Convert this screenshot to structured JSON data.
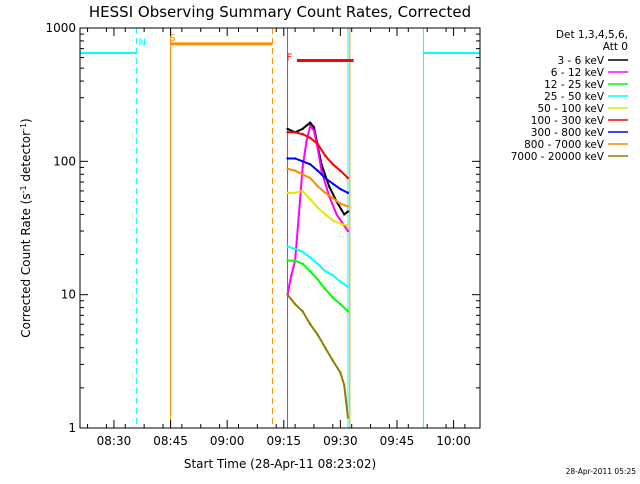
{
  "chart_data": {
    "type": "line",
    "title": "HESSI Observing Summary Count Rates, Corrected",
    "xlabel": "Start Time (28-Apr-11 08:23:02)",
    "ylabel_parts": [
      "Corrected Count Rate (s",
      "-1",
      " detector",
      "-1",
      ")"
    ],
    "y_scale": "log",
    "ylim": [
      1,
      1000
    ],
    "y_ticks": [
      {
        "value": 1,
        "label": "1"
      },
      {
        "value": 10,
        "label": "10"
      },
      {
        "value": 100,
        "label": "100"
      },
      {
        "value": 1000,
        "label": "1000"
      }
    ],
    "xlim_min": [
      -2,
      104
    ],
    "x_ticks": [
      {
        "t": 7,
        "label": "08:30"
      },
      {
        "t": 22,
        "label": "08:45"
      },
      {
        "t": 37,
        "label": "09:00"
      },
      {
        "t": 52,
        "label": "09:15"
      },
      {
        "t": 67,
        "label": "09:30"
      },
      {
        "t": 82,
        "label": "09:45"
      },
      {
        "t": 97,
        "label": "10:00"
      }
    ],
    "x_minor_step": 5,
    "legend": {
      "header": [
        "Det 1,3,4,5,6,",
        "Att 0"
      ],
      "entries": [
        {
          "label": "3 - 6 keV",
          "color": "#000000"
        },
        {
          "label": "6 - 12 keV",
          "color": "#ff00ff"
        },
        {
          "label": "12 - 25 keV",
          "color": "#00ff00"
        },
        {
          "label": "25 - 50 keV",
          "color": "#00ffff"
        },
        {
          "label": "50 - 100 keV",
          "color": "#e6e600"
        },
        {
          "label": "100 - 300 keV",
          "color": "#ff0000"
        },
        {
          "label": "300 - 800 keV",
          "color": "#0000ff"
        },
        {
          "label": "800 - 7000 keV",
          "color": "#ff8c00"
        },
        {
          "label": "7000 - 20000 keV",
          "color": "#8b8000"
        }
      ]
    },
    "series": [
      {
        "color": "#000000",
        "points": [
          [
            53,
            175
          ],
          [
            55,
            165
          ],
          [
            57,
            175
          ],
          [
            58,
            185
          ],
          [
            59,
            195
          ],
          [
            60,
            180
          ],
          [
            61,
            130
          ],
          [
            62,
            95
          ],
          [
            64,
            65
          ],
          [
            66,
            50
          ],
          [
            68,
            40
          ],
          [
            69,
            42
          ]
        ]
      },
      {
        "color": "#ff00ff",
        "points": [
          [
            53,
            10
          ],
          [
            54,
            14
          ],
          [
            55,
            18
          ],
          [
            56,
            40
          ],
          [
            57,
            90
          ],
          [
            58,
            140
          ],
          [
            59,
            185
          ],
          [
            60,
            170
          ],
          [
            61,
            125
          ],
          [
            62,
            85
          ],
          [
            64,
            55
          ],
          [
            66,
            40
          ],
          [
            68,
            33
          ],
          [
            69,
            30
          ]
        ]
      },
      {
        "color": "#00ff00",
        "points": [
          [
            53,
            18
          ],
          [
            55,
            18
          ],
          [
            57,
            17
          ],
          [
            59,
            15
          ],
          [
            61,
            13
          ],
          [
            63,
            11
          ],
          [
            65,
            9.5
          ],
          [
            67,
            8.5
          ],
          [
            69,
            7.5
          ]
        ]
      },
      {
        "color": "#00ffff",
        "points": [
          [
            53,
            23
          ],
          [
            55,
            22
          ],
          [
            57,
            21
          ],
          [
            59,
            19
          ],
          [
            61,
            17
          ],
          [
            63,
            15
          ],
          [
            65,
            14
          ],
          [
            67,
            12.5
          ],
          [
            69,
            11.5
          ]
        ]
      },
      {
        "color": "#e6e600",
        "points": [
          [
            53,
            58
          ],
          [
            55,
            58
          ],
          [
            57,
            60
          ],
          [
            59,
            52
          ],
          [
            61,
            45
          ],
          [
            63,
            40
          ],
          [
            65,
            36
          ],
          [
            67,
            34
          ],
          [
            69,
            33
          ]
        ]
      },
      {
        "color": "#ff0000",
        "points": [
          [
            53,
            165
          ],
          [
            55,
            165
          ],
          [
            57,
            160
          ],
          [
            59,
            150
          ],
          [
            61,
            135
          ],
          [
            63,
            110
          ],
          [
            65,
            95
          ],
          [
            67,
            85
          ],
          [
            69,
            75
          ]
        ]
      },
      {
        "color": "#0000ff",
        "points": [
          [
            53,
            105
          ],
          [
            55,
            105
          ],
          [
            57,
            100
          ],
          [
            59,
            95
          ],
          [
            61,
            85
          ],
          [
            63,
            75
          ],
          [
            65,
            68
          ],
          [
            67,
            62
          ],
          [
            69,
            58
          ]
        ]
      },
      {
        "color": "#ff8c00",
        "points": [
          [
            53,
            88
          ],
          [
            55,
            85
          ],
          [
            57,
            80
          ],
          [
            59,
            75
          ],
          [
            61,
            65
          ],
          [
            63,
            58
          ],
          [
            65,
            53
          ],
          [
            67,
            48
          ],
          [
            69,
            46
          ]
        ]
      },
      {
        "color": "#8b8000",
        "points": [
          [
            53,
            10
          ],
          [
            55,
            8.5
          ],
          [
            57,
            7.5
          ],
          [
            59,
            6
          ],
          [
            61,
            5
          ],
          [
            63,
            4
          ],
          [
            65,
            3.2
          ],
          [
            67,
            2.6
          ],
          [
            68,
            2.1
          ],
          [
            69,
            1.2
          ]
        ]
      }
    ],
    "pre_level": {
      "color": "#00ffff",
      "value": 650,
      "segments": [
        [
          -2,
          13
        ],
        [
          89,
          104
        ]
      ]
    },
    "flags": [
      {
        "label": "N",
        "color": "#00ffff",
        "t": 14.5,
        "y": 740
      },
      {
        "label": "S",
        "color": "#ff8c00",
        "t": 22.5,
        "y": 800
      },
      {
        "label": "F",
        "color": "#ff0000",
        "t": 53.5,
        "y": 570
      }
    ],
    "flag_bars": [
      {
        "color": "#ff8c00",
        "t_start": 22,
        "t_end": 49,
        "value": 760
      },
      {
        "color": "#ff0000",
        "t_start": 55.5,
        "t_end": 70.5,
        "value": 570
      }
    ],
    "vlines": [
      {
        "t": -2,
        "color": "#00ffff",
        "dashed": false
      },
      {
        "t": 13,
        "color": "#00ffff",
        "dashed": true
      },
      {
        "t": 22,
        "color": "#ff8c00",
        "dashed": false
      },
      {
        "t": 49,
        "color": "#ff8c00",
        "dashed": true
      },
      {
        "t": 53,
        "color": "#ff00ff",
        "dashed": false
      },
      {
        "t": 69,
        "color": "#00ffff",
        "dashed": false
      },
      {
        "t": 69.5,
        "color": "#ff8c00",
        "dashed": false
      },
      {
        "t": 89,
        "color": "#00ffff",
        "dashed": false
      },
      {
        "t": 104,
        "color": "#00ffff",
        "dashed": true
      }
    ]
  },
  "footer": "28-Apr-2011 05:25"
}
